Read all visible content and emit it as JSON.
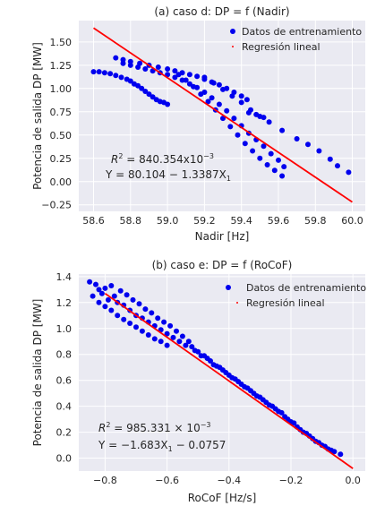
{
  "chart_data": [
    {
      "type": "scatter",
      "title": "(a) caso d: DP = f (Nadir)",
      "xlabel": "Nadir [Hz]",
      "ylabel": "Potencia de salida DP [MW]",
      "xlim": [
        58.52,
        60.07
      ],
      "ylim": [
        -0.32,
        1.73
      ],
      "xticks": [
        58.6,
        58.8,
        59.0,
        59.2,
        59.4,
        59.6,
        59.8,
        60.0
      ],
      "xtick_labels": [
        "58.6",
        "58.8",
        "59.0",
        "59.2",
        "59.4",
        "59.6",
        "59.8",
        "60.0"
      ],
      "yticks": [
        -0.25,
        0.0,
        0.25,
        0.5,
        0.75,
        1.0,
        1.25,
        1.5
      ],
      "ytick_labels": [
        "−0.25",
        "0.00",
        "0.25",
        "0.50",
        "0.75",
        "1.00",
        "1.25",
        "1.50"
      ],
      "grid": true,
      "legend_position": "top-right",
      "legend": [
        "Datos de entrenamiento",
        "Regresión lineal"
      ],
      "annotations": {
        "r2_prefix": "R",
        "r2_sup": "2",
        "r2_rest": " = 840.354x10",
        "r2_exp": "−3",
        "eq_prefix": "Y = 80.104 − 1.3387X",
        "eq_sub": "1"
      },
      "series": [
        {
          "name": "Datos de entrenamiento",
          "kind": "scatter",
          "color": "#0000ee",
          "points": [
            [
              58.6,
              1.18
            ],
            [
              58.63,
              1.18
            ],
            [
              58.66,
              1.17
            ],
            [
              58.69,
              1.16
            ],
            [
              58.72,
              1.14
            ],
            [
              58.75,
              1.12
            ],
            [
              58.78,
              1.1
            ],
            [
              58.8,
              1.08
            ],
            [
              58.82,
              1.05
            ],
            [
              58.84,
              1.03
            ],
            [
              58.86,
              1.0
            ],
            [
              58.88,
              0.97
            ],
            [
              58.9,
              0.94
            ],
            [
              58.92,
              0.91
            ],
            [
              58.94,
              0.88
            ],
            [
              58.96,
              0.86
            ],
            [
              58.98,
              0.85
            ],
            [
              59.0,
              0.83
            ],
            [
              58.72,
              1.33
            ],
            [
              58.76,
              1.31
            ],
            [
              58.8,
              1.29
            ],
            [
              58.85,
              1.27
            ],
            [
              58.9,
              1.25
            ],
            [
              58.95,
              1.23
            ],
            [
              59.0,
              1.21
            ],
            [
              59.04,
              1.19
            ],
            [
              59.08,
              1.17
            ],
            [
              59.12,
              1.15
            ],
            [
              59.16,
              1.13
            ],
            [
              59.2,
              1.1
            ],
            [
              59.24,
              1.07
            ],
            [
              59.28,
              1.04
            ],
            [
              59.32,
              1.0
            ],
            [
              59.36,
              0.96
            ],
            [
              59.4,
              0.92
            ],
            [
              59.43,
              0.88
            ],
            [
              58.76,
              1.27
            ],
            [
              58.8,
              1.25
            ],
            [
              58.84,
              1.23
            ],
            [
              58.88,
              1.21
            ],
            [
              58.92,
              1.19
            ],
            [
              58.96,
              1.17
            ],
            [
              59.0,
              1.15
            ],
            [
              59.04,
              1.12
            ],
            [
              59.08,
              1.09
            ],
            [
              59.12,
              1.05
            ],
            [
              59.16,
              1.01
            ],
            [
              59.2,
              0.96
            ],
            [
              59.24,
              0.9
            ],
            [
              59.28,
              0.83
            ],
            [
              59.32,
              0.76
            ],
            [
              59.36,
              0.68
            ],
            [
              59.4,
              0.6
            ],
            [
              59.44,
              0.52
            ],
            [
              59.48,
              0.45
            ],
            [
              59.52,
              0.38
            ],
            [
              59.56,
              0.3
            ],
            [
              59.6,
              0.23
            ],
            [
              59.63,
              0.16
            ],
            [
              59.06,
              1.15
            ],
            [
              59.1,
              1.09
            ],
            [
              59.14,
              1.02
            ],
            [
              59.18,
              0.94
            ],
            [
              59.22,
              0.86
            ],
            [
              59.26,
              0.77
            ],
            [
              59.3,
              0.68
            ],
            [
              59.34,
              0.59
            ],
            [
              59.38,
              0.5
            ],
            [
              59.42,
              0.41
            ],
            [
              59.46,
              0.33
            ],
            [
              59.5,
              0.25
            ],
            [
              59.54,
              0.18
            ],
            [
              59.58,
              0.12
            ],
            [
              59.62,
              0.06
            ],
            [
              59.2,
              1.12
            ],
            [
              59.25,
              1.06
            ],
            [
              59.3,
              0.99
            ],
            [
              59.35,
              0.92
            ],
            [
              59.4,
              0.85
            ],
            [
              59.45,
              0.77
            ],
            [
              59.48,
              0.72
            ],
            [
              59.52,
              0.69
            ],
            [
              59.44,
              0.74
            ],
            [
              59.5,
              0.7
            ],
            [
              59.55,
              0.64
            ],
            [
              59.62,
              0.55
            ],
            [
              59.7,
              0.46
            ],
            [
              59.76,
              0.4
            ],
            [
              59.82,
              0.33
            ],
            [
              59.88,
              0.24
            ],
            [
              59.92,
              0.17
            ],
            [
              59.98,
              0.1
            ]
          ]
        },
        {
          "name": "Regresión lineal",
          "kind": "line",
          "color": "#ff0000",
          "points": [
            [
              58.6,
              1.65
            ],
            [
              60.0,
              -0.22
            ]
          ]
        }
      ]
    },
    {
      "type": "scatter",
      "title": "(b) caso e: DP = f (RoCoF)",
      "xlabel": "RoCoF [Hz/s]",
      "ylabel": "Potencia de salida DP [MW]",
      "xlim": [
        -0.885,
        0.04
      ],
      "ylim": [
        -0.1,
        1.42
      ],
      "xticks": [
        -0.8,
        -0.6,
        -0.4,
        -0.2,
        0.0
      ],
      "xtick_labels": [
        "−0.8",
        "−0.6",
        "−0.4",
        "−0.2",
        "0.0"
      ],
      "yticks": [
        0.0,
        0.2,
        0.4,
        0.6,
        0.8,
        1.0,
        1.2,
        1.4
      ],
      "ytick_labels": [
        "0.0",
        "0.2",
        "0.4",
        "0.6",
        "0.8",
        "1.0",
        "1.2",
        "1.4"
      ],
      "grid": true,
      "legend_position": "top-right",
      "legend": [
        "Datos de entrenamiento",
        "Regresión lineal"
      ],
      "annotations": {
        "r2_prefix": "R",
        "r2_sup": "2",
        "r2_rest": " = 985.331 × 10",
        "r2_exp": "−3",
        "eq_prefix": "Y = −1.683X",
        "eq_sub": "1",
        "eq_suffix": " − 0.0757"
      },
      "series": [
        {
          "name": "Datos de entrenamiento",
          "kind": "scatter",
          "color": "#0000ee",
          "points": [
            [
              -0.85,
              1.36
            ],
            [
              -0.83,
              1.34
            ],
            [
              -0.82,
              1.3
            ],
            [
              -0.81,
              1.27
            ],
            [
              -0.8,
              1.31
            ],
            [
              -0.79,
              1.22
            ],
            [
              -0.78,
              1.33
            ],
            [
              -0.77,
              1.25
            ],
            [
              -0.76,
              1.2
            ],
            [
              -0.75,
              1.29
            ],
            [
              -0.74,
              1.18
            ],
            [
              -0.73,
              1.26
            ],
            [
              -0.72,
              1.14
            ],
            [
              -0.71,
              1.22
            ],
            [
              -0.7,
              1.1
            ],
            [
              -0.69,
              1.19
            ],
            [
              -0.68,
              1.08
            ],
            [
              -0.67,
              1.15
            ],
            [
              -0.66,
              1.05
            ],
            [
              -0.65,
              1.12
            ],
            [
              -0.64,
              1.02
            ],
            [
              -0.63,
              1.08
            ],
            [
              -0.62,
              0.99
            ],
            [
              -0.61,
              1.05
            ],
            [
              -0.6,
              0.96
            ],
            [
              -0.59,
              1.02
            ],
            [
              -0.58,
              0.93
            ],
            [
              -0.57,
              0.98
            ],
            [
              -0.56,
              0.9
            ],
            [
              -0.55,
              0.94
            ],
            [
              -0.54,
              0.87
            ],
            [
              -0.53,
              0.9
            ],
            [
              -0.84,
              1.25
            ],
            [
              -0.82,
              1.2
            ],
            [
              -0.8,
              1.17
            ],
            [
              -0.78,
              1.14
            ],
            [
              -0.76,
              1.1
            ],
            [
              -0.74,
              1.07
            ],
            [
              -0.72,
              1.04
            ],
            [
              -0.7,
              1.01
            ],
            [
              -0.68,
              0.98
            ],
            [
              -0.66,
              0.95
            ],
            [
              -0.64,
              0.92
            ],
            [
              -0.62,
              0.9
            ],
            [
              -0.6,
              0.87
            ],
            [
              -0.52,
              0.86
            ],
            [
              -0.5,
              0.82
            ],
            [
              -0.48,
              0.79
            ],
            [
              -0.46,
              0.75
            ],
            [
              -0.44,
              0.71
            ],
            [
              -0.42,
              0.68
            ],
            [
              -0.4,
              0.64
            ],
            [
              -0.38,
              0.61
            ],
            [
              -0.36,
              0.57
            ],
            [
              -0.34,
              0.54
            ],
            [
              -0.32,
              0.5
            ],
            [
              -0.3,
              0.47
            ],
            [
              -0.28,
              0.43
            ],
            [
              -0.26,
              0.4
            ],
            [
              -0.24,
              0.36
            ],
            [
              -0.22,
              0.32
            ],
            [
              -0.2,
              0.28
            ],
            [
              -0.18,
              0.24
            ],
            [
              -0.16,
              0.2
            ],
            [
              -0.14,
              0.17
            ],
            [
              -0.12,
              0.13
            ],
            [
              -0.1,
              0.1
            ],
            [
              -0.08,
              0.07
            ],
            [
              -0.06,
              0.05
            ],
            [
              -0.04,
              0.03
            ],
            [
              -0.51,
              0.83
            ],
            [
              -0.49,
              0.79
            ],
            [
              -0.47,
              0.77
            ],
            [
              -0.45,
              0.72
            ],
            [
              -0.43,
              0.7
            ],
            [
              -0.41,
              0.66
            ],
            [
              -0.39,
              0.62
            ],
            [
              -0.37,
              0.59
            ],
            [
              -0.35,
              0.55
            ],
            [
              -0.33,
              0.52
            ],
            [
              -0.31,
              0.48
            ],
            [
              -0.29,
              0.45
            ],
            [
              -0.27,
              0.41
            ],
            [
              -0.25,
              0.38
            ],
            [
              -0.23,
              0.35
            ],
            [
              -0.21,
              0.3
            ],
            [
              -0.19,
              0.27
            ],
            [
              -0.17,
              0.22
            ],
            [
              -0.15,
              0.19
            ],
            [
              -0.13,
              0.15
            ],
            [
              -0.11,
              0.12
            ],
            [
              -0.09,
              0.09
            ],
            [
              -0.07,
              0.06
            ]
          ]
        },
        {
          "name": "Regresión lineal",
          "kind": "line",
          "color": "#ff0000",
          "points": [
            [
              -0.8,
              1.27
            ],
            [
              0.0,
              -0.08
            ]
          ]
        }
      ]
    }
  ]
}
